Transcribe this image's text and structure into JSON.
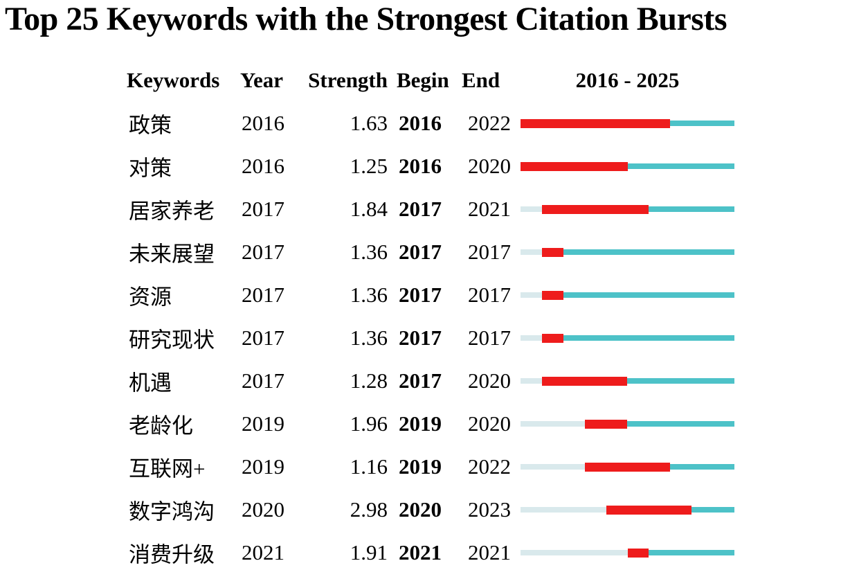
{
  "title": "Top 25 Keywords with the Strongest Citation Bursts",
  "columns": {
    "keywords": "Keywords",
    "year": "Year",
    "strength": "Strength",
    "begin": "Begin",
    "end": "End",
    "period": "2016 - 2025"
  },
  "colors": {
    "burst": "#ee1c1c",
    "active": "#4dc2c8",
    "inactive": "#d9e9ec",
    "text": "#000000",
    "background": "#ffffff"
  },
  "chart_data": {
    "type": "table",
    "title": "Top 25 Keywords with the Strongest Citation Bursts",
    "columns": [
      "Keywords",
      "Year",
      "Strength",
      "Begin",
      "End",
      "2016 - 2025"
    ],
    "axis_range": [
      2016,
      2025
    ],
    "legend": {
      "burst_segment": "red",
      "active_segment": "teal",
      "pre_appearance_segment": "pale-blue"
    },
    "rows": [
      {
        "keyword": "政策",
        "year": 2016,
        "strength": 1.63,
        "begin": 2016,
        "end": 2022
      },
      {
        "keyword": "对策",
        "year": 2016,
        "strength": 1.25,
        "begin": 2016,
        "end": 2020
      },
      {
        "keyword": "居家养老",
        "year": 2017,
        "strength": 1.84,
        "begin": 2017,
        "end": 2021
      },
      {
        "keyword": "未来展望",
        "year": 2017,
        "strength": 1.36,
        "begin": 2017,
        "end": 2017
      },
      {
        "keyword": "资源",
        "year": 2017,
        "strength": 1.36,
        "begin": 2017,
        "end": 2017
      },
      {
        "keyword": "研究现状",
        "year": 2017,
        "strength": 1.36,
        "begin": 2017,
        "end": 2017
      },
      {
        "keyword": "机遇",
        "year": 2017,
        "strength": 1.28,
        "begin": 2017,
        "end": 2020
      },
      {
        "keyword": "老龄化",
        "year": 2019,
        "strength": 1.96,
        "begin": 2019,
        "end": 2020
      },
      {
        "keyword": "互联网+",
        "year": 2019,
        "strength": 1.16,
        "begin": 2019,
        "end": 2022
      },
      {
        "keyword": "数字鸿沟",
        "year": 2020,
        "strength": 2.98,
        "begin": 2020,
        "end": 2023
      },
      {
        "keyword": "消费升级",
        "year": 2021,
        "strength": 1.91,
        "begin": 2021,
        "end": 2021
      }
    ]
  }
}
